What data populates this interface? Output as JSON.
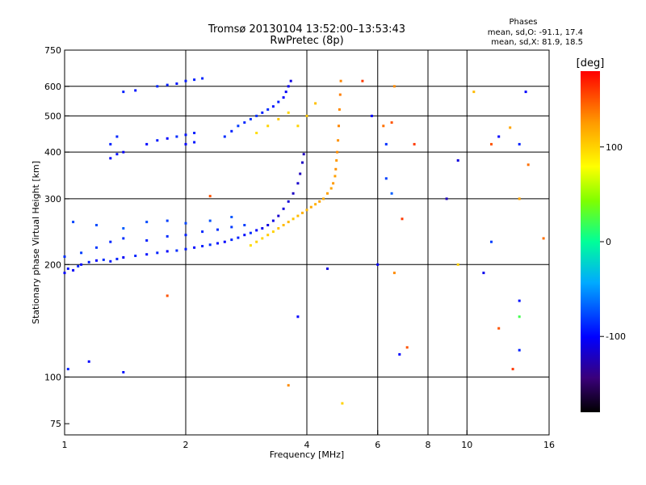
{
  "chart_data": {
    "type": "scatter",
    "title": "Tromsø 20130104 13:52:00–13:53:43",
    "subtitle": "RwPretec (8p)",
    "stats": {
      "heading": "Phases",
      "line1": "mean, sd,O: -91.1, 17.4",
      "line2": "mean, sd,X:  81.9, 18.5"
    },
    "xlabel": "Frequency [MHz]",
    "ylabel": "Stationary phase Virtual Height [km]",
    "xscale": "log",
    "yscale": "log",
    "xlim": [
      1,
      16
    ],
    "ylim": [
      70,
      750
    ],
    "xticks": [
      1,
      2,
      4,
      6,
      8,
      10,
      16
    ],
    "xtick_labels": [
      "1",
      "2",
      "4",
      "6",
      "8",
      "10",
      "16"
    ],
    "xgrid": [
      2,
      4,
      6,
      8,
      10
    ],
    "yticks": [
      75,
      100,
      200,
      300,
      400,
      500,
      600,
      750
    ],
    "ytick_labels": [
      "75",
      "100",
      "200",
      "300",
      "400",
      "500",
      "600",
      "750"
    ],
    "ygrid": [
      100,
      200,
      300,
      400,
      500,
      600
    ],
    "grid": true,
    "colorbar": {
      "label": "[deg]",
      "range": [
        -180,
        180
      ],
      "ticks": [
        100,
        0,
        -100
      ],
      "tick_labels": [
        "100",
        "0",
        "-100"
      ],
      "position": "right"
    },
    "series": [
      {
        "points": [
          [
            1.0,
            190,
            -110
          ],
          [
            1.02,
            195,
            -105
          ],
          [
            1.05,
            193,
            -112
          ],
          [
            1.08,
            198,
            -100
          ],
          [
            1.1,
            200,
            -108
          ],
          [
            1.15,
            203,
            -102
          ],
          [
            1.2,
            205,
            -110
          ],
          [
            1.25,
            206,
            -96
          ],
          [
            1.3,
            204,
            -104
          ],
          [
            1.35,
            207,
            -100
          ],
          [
            1.4,
            209,
            -112
          ],
          [
            1.5,
            211,
            -98
          ],
          [
            1.6,
            213,
            -105
          ],
          [
            1.7,
            215,
            -100
          ],
          [
            1.8,
            217,
            -110
          ],
          [
            1.9,
            218,
            -96
          ],
          [
            2.0,
            220,
            -102
          ],
          [
            2.1,
            222,
            -108
          ],
          [
            2.2,
            224,
            -100
          ],
          [
            2.3,
            226,
            -95
          ],
          [
            2.4,
            228,
            -104
          ],
          [
            2.5,
            230,
            -110
          ],
          [
            2.6,
            233,
            -98
          ],
          [
            2.7,
            236,
            -100
          ],
          [
            2.8,
            240,
            -106
          ],
          [
            2.9,
            243,
            -96
          ],
          [
            3.0,
            247,
            -110
          ],
          [
            3.1,
            250,
            -115
          ],
          [
            3.2,
            255,
            -120
          ],
          [
            3.3,
            262,
            -118
          ],
          [
            3.4,
            270,
            -125
          ],
          [
            3.5,
            282,
            -120
          ],
          [
            3.6,
            295,
            -122
          ],
          [
            3.7,
            310,
            -128
          ],
          [
            3.8,
            330,
            -125
          ],
          [
            3.85,
            350,
            -130
          ],
          [
            3.9,
            375,
            -128
          ],
          [
            3.93,
            395,
            -130
          ],
          [
            1.0,
            210,
            -95
          ],
          [
            1.1,
            215,
            -90
          ],
          [
            1.2,
            222,
            -92
          ],
          [
            1.3,
            230,
            -98
          ],
          [
            1.4,
            235,
            -95
          ],
          [
            1.6,
            232,
            -100
          ],
          [
            1.8,
            238,
            -96
          ],
          [
            2.0,
            240,
            -100
          ],
          [
            2.2,
            245,
            -98
          ],
          [
            2.4,
            248,
            -95
          ],
          [
            2.6,
            252,
            -92
          ],
          [
            2.8,
            255,
            -90
          ],
          [
            1.05,
            260,
            -88
          ],
          [
            1.2,
            255,
            -85
          ],
          [
            1.4,
            250,
            -80
          ],
          [
            1.6,
            260,
            -86
          ],
          [
            1.8,
            262,
            -90
          ],
          [
            2.0,
            258,
            -88
          ],
          [
            2.3,
            262,
            -84
          ],
          [
            2.6,
            268,
            -82
          ]
        ]
      },
      {
        "points": [
          [
            2.9,
            225,
            95
          ],
          [
            3.0,
            230,
            100
          ],
          [
            3.1,
            235,
            98
          ],
          [
            3.2,
            240,
            104
          ],
          [
            3.3,
            245,
            100
          ],
          [
            3.4,
            250,
            108
          ],
          [
            3.5,
            255,
            110
          ],
          [
            3.6,
            260,
            112
          ],
          [
            3.7,
            265,
            106
          ],
          [
            3.8,
            270,
            110
          ],
          [
            3.9,
            275,
            115
          ],
          [
            4.0,
            280,
            112
          ],
          [
            4.1,
            285,
            118
          ],
          [
            4.2,
            290,
            115
          ],
          [
            4.3,
            295,
            120
          ],
          [
            4.4,
            300,
            118
          ],
          [
            4.5,
            310,
            122
          ],
          [
            4.6,
            320,
            120
          ],
          [
            4.65,
            330,
            125
          ],
          [
            4.7,
            345,
            122
          ],
          [
            4.72,
            360,
            128
          ],
          [
            4.74,
            380,
            125
          ],
          [
            4.76,
            400,
            130
          ],
          [
            4.78,
            430,
            128
          ],
          [
            4.8,
            470,
            132
          ],
          [
            4.82,
            520,
            130
          ],
          [
            4.84,
            570,
            135
          ],
          [
            4.86,
            620,
            132
          ]
        ]
      },
      {
        "points": [
          [
            1.3,
            385,
            -110
          ],
          [
            1.35,
            395,
            -105
          ],
          [
            1.4,
            400,
            -112
          ],
          [
            1.3,
            420,
            -100
          ],
          [
            1.35,
            440,
            -98
          ],
          [
            1.6,
            420,
            -108
          ],
          [
            1.7,
            430,
            -102
          ],
          [
            1.8,
            435,
            -110
          ],
          [
            1.9,
            440,
            -96
          ],
          [
            2.0,
            445,
            -104
          ],
          [
            2.1,
            450,
            -100
          ],
          [
            2.0,
            420,
            -110
          ],
          [
            2.1,
            425,
            -104
          ],
          [
            2.5,
            440,
            -96
          ],
          [
            2.6,
            455,
            -100
          ],
          [
            2.7,
            470,
            -92
          ],
          [
            2.8,
            480,
            -98
          ],
          [
            2.9,
            490,
            -94
          ],
          [
            3.0,
            500,
            -96
          ],
          [
            3.1,
            510,
            -100
          ],
          [
            3.2,
            520,
            -96
          ],
          [
            3.3,
            530,
            -104
          ],
          [
            3.4,
            545,
            -100
          ],
          [
            3.5,
            560,
            -110
          ],
          [
            3.55,
            580,
            -112
          ],
          [
            3.6,
            600,
            -115
          ],
          [
            3.65,
            620,
            -118
          ],
          [
            1.4,
            580,
            -100
          ],
          [
            1.5,
            585,
            -104
          ],
          [
            1.7,
            600,
            -98
          ],
          [
            1.8,
            605,
            -100
          ],
          [
            1.9,
            610,
            -104
          ],
          [
            2.0,
            620,
            -102
          ],
          [
            2.1,
            625,
            -100
          ],
          [
            2.2,
            630,
            -98
          ]
        ]
      },
      {
        "points": [
          [
            3.0,
            450,
            95
          ],
          [
            3.2,
            470,
            100
          ],
          [
            3.4,
            490,
            104
          ],
          [
            3.6,
            510,
            98
          ],
          [
            3.8,
            470,
            100
          ],
          [
            4.0,
            500,
            105
          ],
          [
            4.2,
            540,
            108
          ]
        ]
      },
      {
        "points": [
          [
            5.8,
            500,
            -110
          ],
          [
            6.2,
            470,
            140
          ],
          [
            6.5,
            480,
            150
          ],
          [
            6.6,
            600,
            130
          ],
          [
            6.3,
            420,
            -95
          ],
          [
            7.4,
            420,
            160
          ],
          [
            9.5,
            380,
            -120
          ],
          [
            10.4,
            580,
            110
          ],
          [
            11.5,
            420,
            150
          ],
          [
            12.0,
            440,
            -110
          ],
          [
            12.8,
            465,
            120
          ],
          [
            13.5,
            420,
            -100
          ],
          [
            13.5,
            300,
            120
          ],
          [
            11.5,
            230,
            -90
          ],
          [
            8.9,
            300,
            -130
          ],
          [
            6.5,
            310,
            -80
          ],
          [
            6.0,
            200,
            -110
          ],
          [
            6.6,
            190,
            130
          ],
          [
            9.5,
            200,
            100
          ],
          [
            11.0,
            190,
            -115
          ],
          [
            13.5,
            160,
            -105
          ],
          [
            13.5,
            145,
            20
          ],
          [
            12.0,
            135,
            150
          ],
          [
            13.5,
            118,
            -100
          ],
          [
            7.1,
            120,
            150
          ],
          [
            6.8,
            115,
            -110
          ],
          [
            1.02,
            105,
            -100
          ],
          [
            1.15,
            110,
            -110
          ],
          [
            1.4,
            103,
            -105
          ],
          [
            3.8,
            145,
            -110
          ],
          [
            3.6,
            95,
            130
          ],
          [
            4.9,
            85,
            100
          ],
          [
            15.5,
            235,
            140
          ],
          [
            14.0,
            580,
            -110
          ],
          [
            14.2,
            370,
            140
          ],
          [
            13.0,
            105,
            160
          ],
          [
            2.3,
            305,
            150
          ],
          [
            5.5,
            620,
            160
          ],
          [
            6.3,
            340,
            -90
          ],
          [
            4.5,
            195,
            -120
          ],
          [
            1.8,
            165,
            150
          ],
          [
            6.9,
            265,
            160
          ]
        ]
      }
    ]
  }
}
